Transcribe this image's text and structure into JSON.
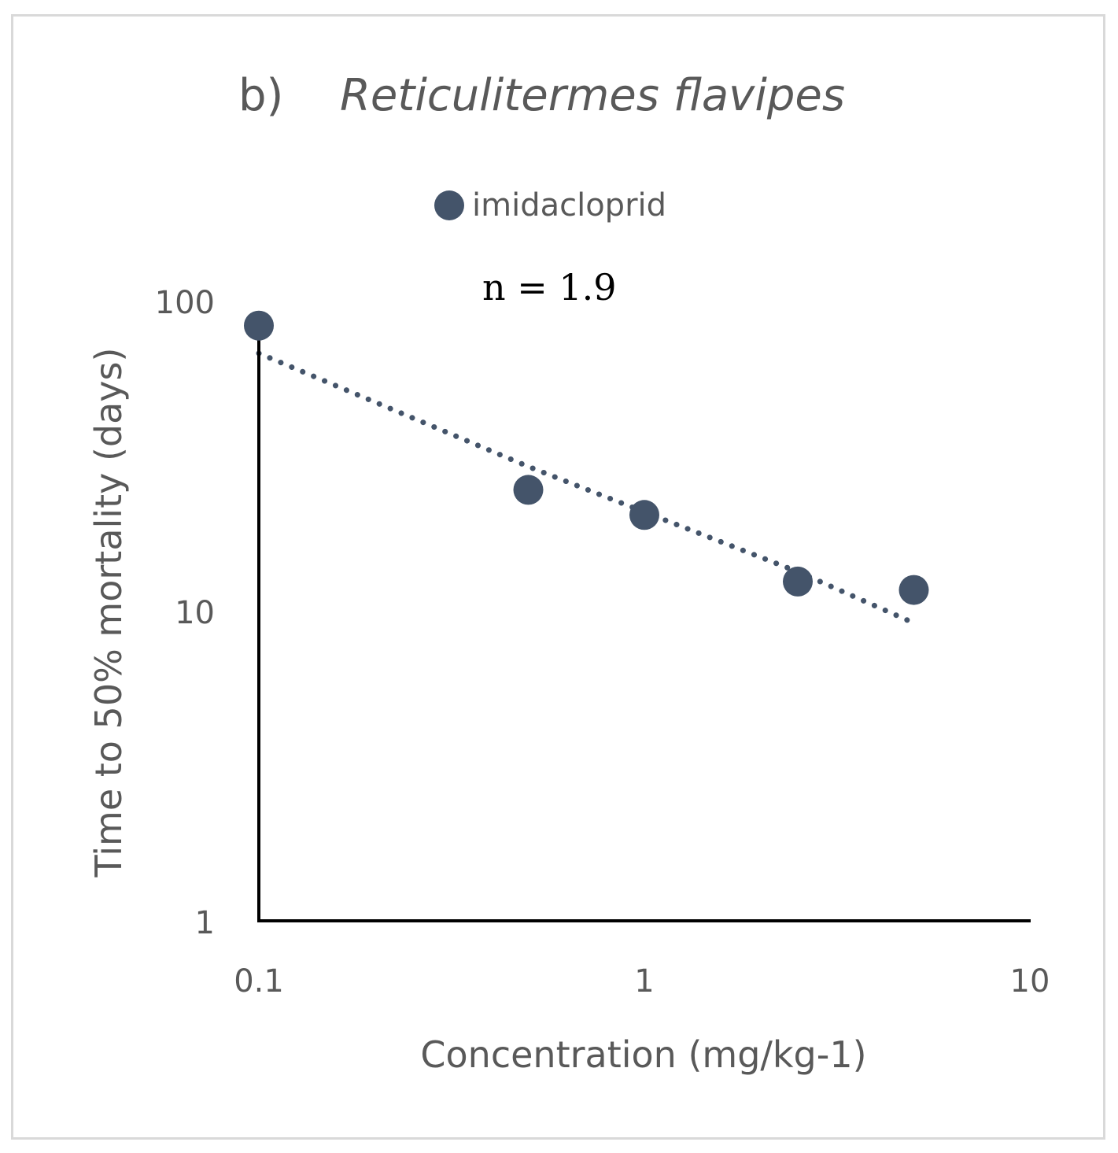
{
  "chart_data": {
    "type": "scatter",
    "title_prefix": "b)",
    "title": "Reticulitermes flavipes",
    "xlabel": "Concentration (mg/kg-1)",
    "ylabel": "Time to 50% mortality (days)",
    "x_scale": "log",
    "y_scale": "log",
    "xlim": [
      0.1,
      10
    ],
    "ylim": [
      1,
      100
    ],
    "x_ticks": [
      "0.1",
      "1",
      "10"
    ],
    "y_ticks": [
      "1",
      "10",
      "100"
    ],
    "legend_position": "top-center",
    "series": [
      {
        "name": "imidacloprid",
        "color": "#44546a",
        "x": [
          0.1,
          0.5,
          1,
          2.5,
          5
        ],
        "y": [
          90,
          26,
          21.5,
          13,
          12.2
        ]
      }
    ],
    "trendline": {
      "style": "dotted",
      "color": "#44546a",
      "x": [
        0.1,
        0.5,
        1,
        2.5,
        5
      ],
      "y": [
        73,
        31,
        22,
        14,
        9.5
      ]
    },
    "annotations": [
      {
        "text": "n = 1.9"
      }
    ]
  }
}
